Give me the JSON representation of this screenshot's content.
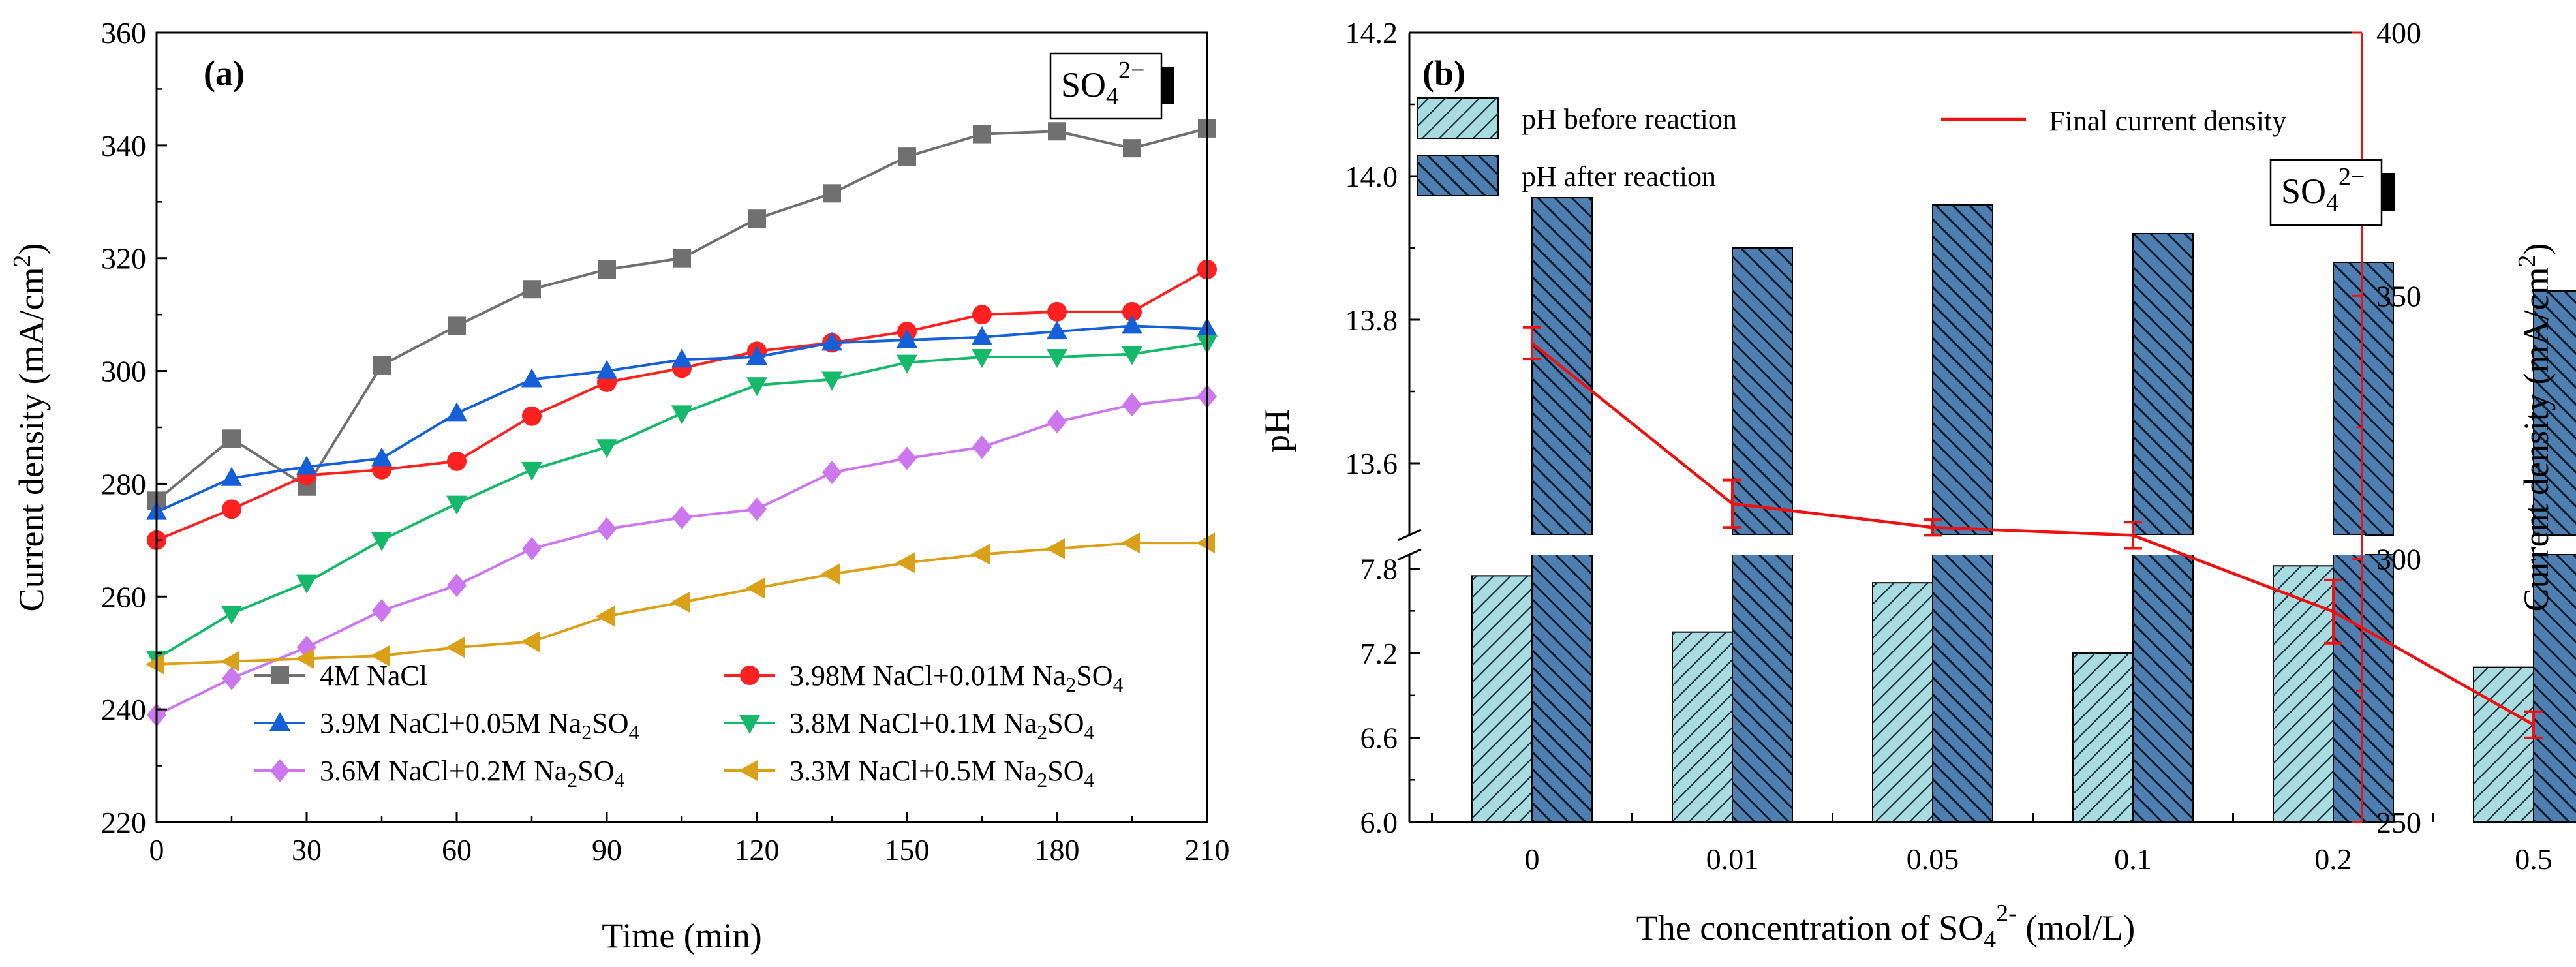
{
  "chart_data": [
    {
      "type": "line",
      "panel_label": "(a)",
      "badge": {
        "base": "SO",
        "sub": "4",
        "sup": "2−"
      },
      "xlabel": "Time (min)",
      "ylabel": {
        "main": "Current density (mA/cm",
        "sup": "2",
        "end": ")"
      },
      "xlim": [
        0,
        210
      ],
      "ylim": [
        220,
        360
      ],
      "x": [
        0,
        15,
        30,
        45,
        60,
        75,
        90,
        105,
        120,
        135,
        150,
        165,
        180,
        195,
        210
      ],
      "xticks": [
        "0",
        "30",
        "60",
        "90",
        "120",
        "150",
        "180",
        "210"
      ],
      "yticks": [
        "220",
        "240",
        "260",
        "280",
        "300",
        "320",
        "340",
        "360"
      ],
      "series": [
        {
          "name": "4M NaCl",
          "parts": [
            {
              "t": "4M NaCl"
            }
          ],
          "color": "#707070",
          "marker": "square",
          "values": [
            277,
            288,
            279.5,
            301,
            308,
            314.5,
            318,
            320,
            327,
            331.5,
            338,
            342,
            342.5,
            339.5,
            343
          ]
        },
        {
          "name": "3.98M NaCl+0.01M Na2SO4",
          "parts": [
            {
              "t": "3.98M NaCl+0.01M Na"
            },
            {
              "t": "2",
              "sub": true
            },
            {
              "t": "SO"
            },
            {
              "t": "4",
              "sub": true
            }
          ],
          "color": "#ff2020",
          "marker": "circle",
          "values": [
            270,
            275.5,
            281.5,
            282.5,
            284,
            292,
            298,
            300.5,
            303.5,
            305,
            307,
            310,
            310.5,
            310.5,
            318
          ]
        },
        {
          "name": "3.9M NaCl+0.05M Na2SO4",
          "parts": [
            {
              "t": "3.9M NaCl+0.05M Na"
            },
            {
              "t": "2",
              "sub": true
            },
            {
              "t": "SO"
            },
            {
              "t": "4",
              "sub": true
            }
          ],
          "color": "#1560d8",
          "marker": "triangle-up",
          "values": [
            275,
            281,
            283,
            284.5,
            292.5,
            298.5,
            300,
            302,
            302.5,
            305,
            305.5,
            306,
            307,
            308,
            307.5
          ]
        },
        {
          "name": "3.8M NaCl+0.1M Na2SO4",
          "parts": [
            {
              "t": "3.8M NaCl+0.1M Na"
            },
            {
              "t": "2",
              "sub": true
            },
            {
              "t": "SO"
            },
            {
              "t": "4",
              "sub": true
            }
          ],
          "color": "#16b86a",
          "marker": "triangle-down",
          "values": [
            249,
            257,
            262.5,
            270,
            276.5,
            282.5,
            286.5,
            292.5,
            297.5,
            298.5,
            301.5,
            302.5,
            302.5,
            303,
            305
          ]
        },
        {
          "name": "3.6M NaCl+0.2M Na2SO4",
          "parts": [
            {
              "t": "3.6M NaCl+0.2M Na"
            },
            {
              "t": "2",
              "sub": true
            },
            {
              "t": "SO"
            },
            {
              "t": "4",
              "sub": true
            }
          ],
          "color": "#cc77ee",
          "marker": "diamond",
          "values": [
            239,
            245.5,
            251,
            257.5,
            262,
            268.5,
            272,
            274,
            275.5,
            282,
            284.5,
            286.5,
            291,
            294,
            295.5
          ]
        },
        {
          "name": "3.3M NaCl+0.5M Na2SO4",
          "parts": [
            {
              "t": "3.3M NaCl+0.5M Na"
            },
            {
              "t": "2",
              "sub": true
            },
            {
              "t": "SO"
            },
            {
              "t": "4",
              "sub": true
            }
          ],
          "color": "#daa018",
          "marker": "triangle-left",
          "values": [
            248,
            248.5,
            249,
            249.5,
            251,
            252,
            256.5,
            259,
            261.5,
            264,
            266,
            267.5,
            268.5,
            269.5,
            269.5
          ]
        }
      ]
    },
    {
      "type": "bar",
      "panel_label": "(b)",
      "badge": {
        "base": "SO",
        "sub": "4",
        "sup": "2−"
      },
      "categories": [
        "0",
        "0.01",
        "0.05",
        "0.1",
        "0.2",
        "0.5"
      ],
      "xlabel": {
        "main": "The concentration of SO",
        "sub": "4",
        "sup": "2-",
        "end": " (mol/L)"
      },
      "ylabel": "pH",
      "y2label": {
        "main": "Current density (mA/cm",
        "sup": "2",
        "end": ")"
      },
      "ylim_lower": [
        6.0,
        7.9
      ],
      "ylim_upper": [
        13.5,
        14.2
      ],
      "yticks_lower": [
        "6.0",
        "6.6",
        "7.2",
        "7.8"
      ],
      "yticks_upper": [
        "13.6",
        "13.8",
        "14.0",
        "14.2"
      ],
      "y2lim": [
        250,
        400
      ],
      "y2ticks": [
        "250",
        "300",
        "350",
        "400"
      ],
      "series": [
        {
          "name": "pH before reaction",
          "color": "#a8dce0",
          "hatch": "forward",
          "values": [
            7.75,
            7.35,
            7.7,
            7.2,
            7.82,
            7.1
          ]
        },
        {
          "name": "pH after reaction",
          "color": "#4f7fb1",
          "hatch": "back",
          "values": [
            13.97,
            13.9,
            13.96,
            13.92,
            13.88,
            13.84
          ]
        }
      ],
      "line_series": {
        "name": "Final current density",
        "color": "#ee1111",
        "values": [
          341,
          310.5,
          306,
          304.5,
          290,
          268.5
        ],
        "errors": [
          3,
          4.5,
          1.5,
          2.5,
          6,
          2.5
        ]
      }
    }
  ]
}
